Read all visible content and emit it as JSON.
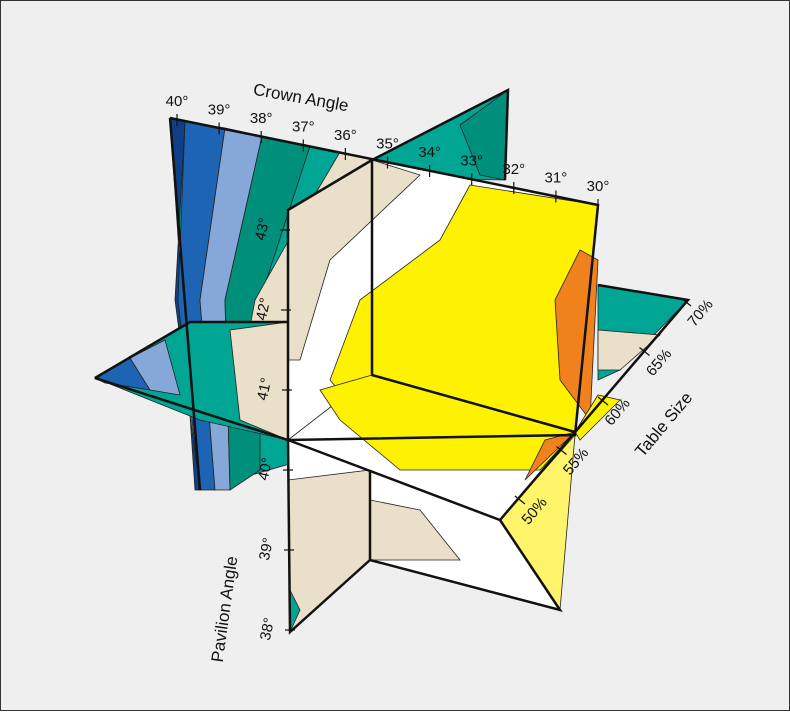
{
  "crown_axis": {
    "title": "Crown Angle",
    "ticks": [
      "40°",
      "39°",
      "38°",
      "37°",
      "36°",
      "35°",
      "34°",
      "33°",
      "32°",
      "31°",
      "30°"
    ]
  },
  "pavilion_axis": {
    "title": "Pavilion Angle",
    "ticks": [
      "43°",
      "42°",
      "41°",
      "40°",
      "39°",
      "38°"
    ]
  },
  "table_axis": {
    "title": "Table Size",
    "ticks": [
      "50%",
      "55%",
      "60%",
      "65%",
      "70%"
    ]
  }
}
